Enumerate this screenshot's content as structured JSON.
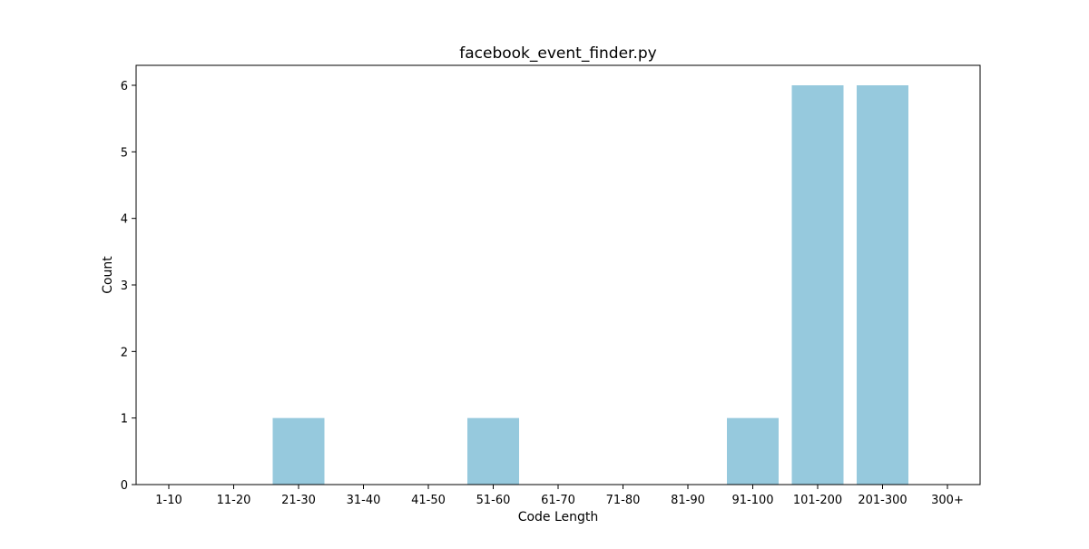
{
  "chart_data": {
    "type": "bar",
    "title": "facebook_event_finder.py",
    "xlabel": "Code Length",
    "ylabel": "Count",
    "categories": [
      "1-10",
      "11-20",
      "21-30",
      "31-40",
      "41-50",
      "51-60",
      "61-70",
      "71-80",
      "81-90",
      "91-100",
      "101-200",
      "201-300",
      "300+"
    ],
    "values": [
      0,
      0,
      1,
      0,
      0,
      1,
      0,
      0,
      0,
      1,
      6,
      6,
      0
    ],
    "ylim": [
      0,
      6.3
    ],
    "yticks": [
      0,
      1,
      2,
      3,
      4,
      5,
      6
    ],
    "bar_color": "#96c9dd",
    "grid": false
  }
}
